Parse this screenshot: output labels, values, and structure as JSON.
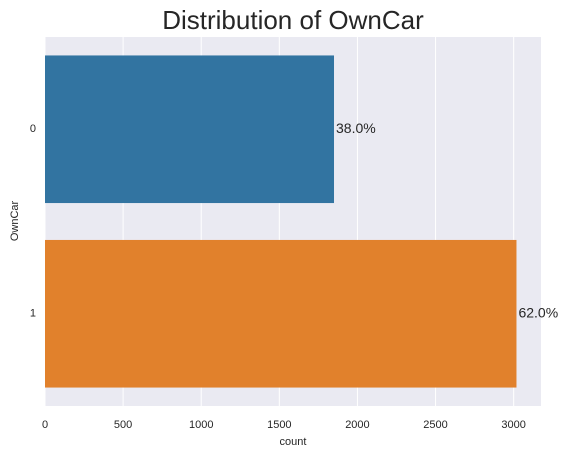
{
  "chart_data": {
    "type": "barh",
    "title": "Distribution of OwnCar",
    "xlabel": "count",
    "ylabel": "OwnCar",
    "categories": [
      "0",
      "1"
    ],
    "values": [
      1850,
      3018
    ],
    "colors": [
      "#3274a1",
      "#e1812c"
    ],
    "annotations": [
      "38.0%",
      "62.0%"
    ],
    "xlim": [
      0,
      3175
    ],
    "xticks": [
      0,
      500,
      1000,
      1500,
      2000,
      2500,
      3000
    ],
    "grid": true
  }
}
